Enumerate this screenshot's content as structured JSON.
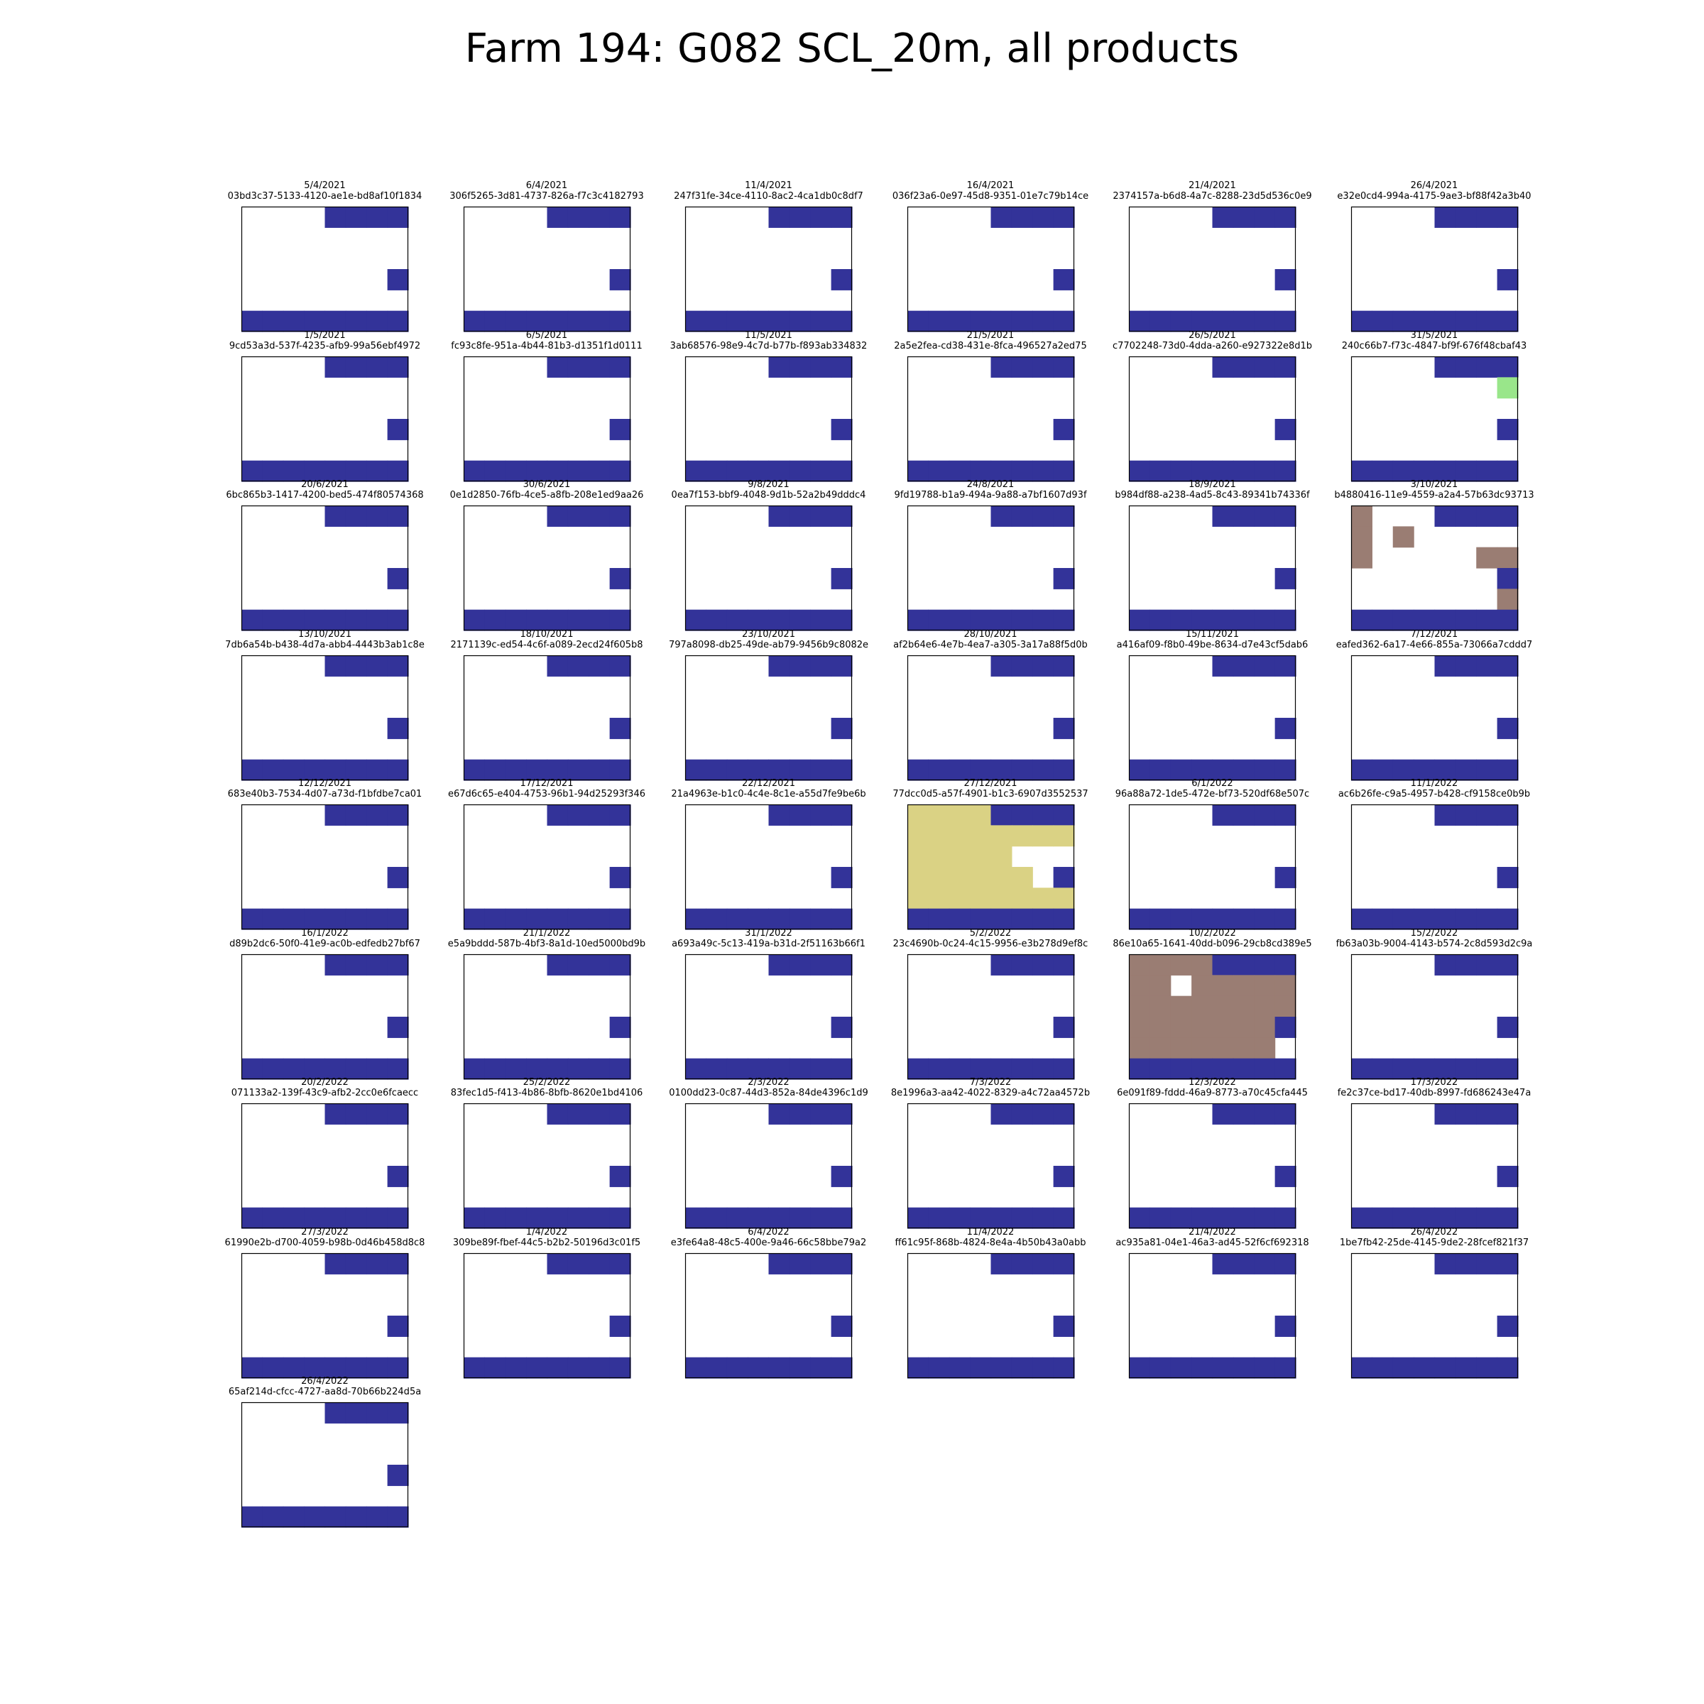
{
  "title": "Farm 194: G082 SCL_20m, all products",
  "colors": {
    "no_data": "#ffffff",
    "cloud_shadow": "#333399",
    "vegetation": "#99e68a",
    "bare_soil": "#9a7d73",
    "water": "#dad284"
  },
  "chart_data": {
    "type": "heatmap",
    "grid_rows": 6,
    "grid_cols": 8,
    "legend": null,
    "base_pattern": [
      [
        0,
        0,
        0,
        0,
        1,
        1,
        1,
        1
      ],
      [
        0,
        0,
        0,
        0,
        0,
        0,
        0,
        0
      ],
      [
        0,
        0,
        0,
        0,
        0,
        0,
        0,
        0
      ],
      [
        0,
        0,
        0,
        0,
        0,
        0,
        0,
        1
      ],
      [
        0,
        0,
        0,
        0,
        0,
        0,
        0,
        0
      ],
      [
        1,
        1,
        1,
        1,
        1,
        1,
        1,
        1
      ]
    ],
    "panels": [
      {
        "date": "5/4/2021",
        "id": "03bd3c37-5133-4120-ae1e-bd8af10f1834",
        "cells": []
      },
      {
        "date": "6/4/2021",
        "id": "306f5265-3d81-4737-826a-f7c3c4182793",
        "cells": []
      },
      {
        "date": "11/4/2021",
        "id": "247f31fe-34ce-4110-8ac2-4ca1db0c8df7",
        "cells": []
      },
      {
        "date": "16/4/2021",
        "id": "036f23a6-0e97-45d8-9351-01e7c79b14ce",
        "cells": []
      },
      {
        "date": "21/4/2021",
        "id": "2374157a-b6d8-4a7c-8288-23d5d536c0e9",
        "cells": []
      },
      {
        "date": "26/4/2021",
        "id": "e32e0cd4-994a-4175-9ae3-bf88f42a3b40",
        "cells": []
      },
      {
        "date": "1/5/2021",
        "id": "9cd53a3d-537f-4235-afb9-99a56ebf4972",
        "cells": []
      },
      {
        "date": "6/5/2021",
        "id": "fc93c8fe-951a-4b44-81b3-d1351f1d0111",
        "cells": []
      },
      {
        "date": "11/5/2021",
        "id": "3ab68576-98e9-4c7d-b77b-f893ab334832",
        "cells": []
      },
      {
        "date": "21/5/2021",
        "id": "2a5e2fea-cd38-431e-8fca-496527a2ed75",
        "cells": []
      },
      {
        "date": "26/5/2021",
        "id": "c7702248-73d0-4dda-a260-e927322e8d1b",
        "cells": []
      },
      {
        "date": "31/5/2021",
        "id": "240c66b7-f73c-4847-bf9f-676f48cbaf43",
        "cells": [
          [
            1,
            7,
            "vegetation"
          ]
        ]
      },
      {
        "date": "20/6/2021",
        "id": "6bc865b3-1417-4200-bed5-474f80574368",
        "cells": []
      },
      {
        "date": "30/6/2021",
        "id": "0e1d2850-76fb-4ce5-a8fb-208e1ed9aa26",
        "cells": []
      },
      {
        "date": "9/8/2021",
        "id": "0ea7f153-bbf9-4048-9d1b-52a2b49dddc4",
        "cells": []
      },
      {
        "date": "24/8/2021",
        "id": "9fd19788-b1a9-494a-9a88-a7bf1607d93f",
        "cells": []
      },
      {
        "date": "18/9/2021",
        "id": "b984df88-a238-4ad5-8c43-89341b74336f",
        "cells": []
      },
      {
        "date": "3/10/2021",
        "id": "b4880416-11e9-4559-a2a4-57b63dc93713",
        "cells": [
          [
            0,
            0,
            "bare_soil"
          ],
          [
            1,
            0,
            "bare_soil"
          ],
          [
            1,
            2,
            "bare_soil"
          ],
          [
            2,
            0,
            "bare_soil"
          ],
          [
            2,
            6,
            "bare_soil"
          ],
          [
            2,
            7,
            "bare_soil"
          ],
          [
            4,
            7,
            "bare_soil"
          ]
        ]
      },
      {
        "date": "13/10/2021",
        "id": "7db6a54b-b438-4d7a-abb4-4443b3ab1c8e",
        "cells": []
      },
      {
        "date": "18/10/2021",
        "id": "2171139c-ed54-4c6f-a089-2ecd24f605b8",
        "cells": []
      },
      {
        "date": "23/10/2021",
        "id": "797a8098-db25-49de-ab79-9456b9c8082e",
        "cells": []
      },
      {
        "date": "28/10/2021",
        "id": "af2b64e6-4e7b-4ea7-a305-3a17a88f5d0b",
        "cells": []
      },
      {
        "date": "15/11/2021",
        "id": "a416af09-f8b0-49be-8634-d7e43cf5dab6",
        "cells": []
      },
      {
        "date": "7/12/2021",
        "id": "eafed362-6a17-4e66-855a-73066a7cddd7",
        "cells": []
      },
      {
        "date": "12/12/2021",
        "id": "683e40b3-7534-4d07-a73d-f1bfdbe7ca01",
        "cells": []
      },
      {
        "date": "17/12/2021",
        "id": "e67d6c65-e404-4753-96b1-94d25293f346",
        "cells": []
      },
      {
        "date": "22/12/2021",
        "id": "21a4963e-b1c0-4c4e-8c1e-a55d7fe9be6b",
        "cells": []
      },
      {
        "date": "27/12/2021",
        "id": "77dcc0d5-a57f-4901-b1c3-6907d3552537",
        "cells": [
          [
            0,
            0,
            "water"
          ],
          [
            0,
            1,
            "water"
          ],
          [
            0,
            2,
            "water"
          ],
          [
            0,
            3,
            "water"
          ],
          [
            1,
            0,
            "water"
          ],
          [
            1,
            1,
            "water"
          ],
          [
            1,
            2,
            "water"
          ],
          [
            1,
            3,
            "water"
          ],
          [
            1,
            4,
            "water"
          ],
          [
            1,
            5,
            "water"
          ],
          [
            1,
            6,
            "water"
          ],
          [
            1,
            7,
            "water"
          ],
          [
            2,
            0,
            "water"
          ],
          [
            2,
            1,
            "water"
          ],
          [
            2,
            2,
            "water"
          ],
          [
            2,
            3,
            "water"
          ],
          [
            2,
            4,
            "water"
          ],
          [
            3,
            0,
            "water"
          ],
          [
            3,
            1,
            "water"
          ],
          [
            3,
            2,
            "water"
          ],
          [
            3,
            3,
            "water"
          ],
          [
            3,
            4,
            "water"
          ],
          [
            3,
            5,
            "water"
          ],
          [
            4,
            0,
            "water"
          ],
          [
            4,
            1,
            "water"
          ],
          [
            4,
            2,
            "water"
          ],
          [
            4,
            3,
            "water"
          ],
          [
            4,
            4,
            "water"
          ],
          [
            4,
            5,
            "water"
          ],
          [
            4,
            6,
            "water"
          ],
          [
            4,
            7,
            "water"
          ]
        ]
      },
      {
        "date": "6/1/2022",
        "id": "96a88a72-1de5-472e-bf73-520df68e507c",
        "cells": []
      },
      {
        "date": "11/1/2022",
        "id": "ac6b26fe-c9a5-4957-b428-cf9158ce0b9b",
        "cells": []
      },
      {
        "date": "16/1/2022",
        "id": "d89b2dc6-50f0-41e9-ac0b-edfedb27bf67",
        "cells": []
      },
      {
        "date": "21/1/2022",
        "id": "e5a9bddd-587b-4bf3-8a1d-10ed5000bd9b",
        "cells": []
      },
      {
        "date": "31/1/2022",
        "id": "a693a49c-5c13-419a-b31d-2f51163b66f1",
        "cells": []
      },
      {
        "date": "5/2/2022",
        "id": "23c4690b-0c24-4c15-9956-e3b278d9ef8c",
        "cells": []
      },
      {
        "date": "10/2/2022",
        "id": "86e10a65-1641-40dd-b096-29cb8cd389e5",
        "cells": [
          [
            0,
            0,
            "bare_soil"
          ],
          [
            0,
            1,
            "bare_soil"
          ],
          [
            0,
            2,
            "bare_soil"
          ],
          [
            0,
            3,
            "bare_soil"
          ],
          [
            1,
            0,
            "bare_soil"
          ],
          [
            1,
            1,
            "bare_soil"
          ],
          [
            1,
            3,
            "bare_soil"
          ],
          [
            1,
            4,
            "bare_soil"
          ],
          [
            1,
            5,
            "bare_soil"
          ],
          [
            1,
            6,
            "bare_soil"
          ],
          [
            1,
            7,
            "bare_soil"
          ],
          [
            2,
            0,
            "bare_soil"
          ],
          [
            2,
            1,
            "bare_soil"
          ],
          [
            2,
            2,
            "bare_soil"
          ],
          [
            2,
            3,
            "bare_soil"
          ],
          [
            2,
            4,
            "bare_soil"
          ],
          [
            2,
            5,
            "bare_soil"
          ],
          [
            2,
            6,
            "bare_soil"
          ],
          [
            2,
            7,
            "bare_soil"
          ],
          [
            3,
            0,
            "bare_soil"
          ],
          [
            3,
            1,
            "bare_soil"
          ],
          [
            3,
            2,
            "bare_soil"
          ],
          [
            3,
            3,
            "bare_soil"
          ],
          [
            3,
            4,
            "bare_soil"
          ],
          [
            3,
            5,
            "bare_soil"
          ],
          [
            3,
            6,
            "bare_soil"
          ],
          [
            4,
            0,
            "bare_soil"
          ],
          [
            4,
            1,
            "bare_soil"
          ],
          [
            4,
            2,
            "bare_soil"
          ],
          [
            4,
            3,
            "bare_soil"
          ],
          [
            4,
            4,
            "bare_soil"
          ],
          [
            4,
            5,
            "bare_soil"
          ],
          [
            4,
            6,
            "bare_soil"
          ]
        ]
      },
      {
        "date": "15/2/2022",
        "id": "fb63a03b-9004-4143-b574-2c8d593d2c9a",
        "cells": []
      },
      {
        "date": "20/2/2022",
        "id": "071133a2-139f-43c9-afb2-2cc0e6fcaecc",
        "cells": []
      },
      {
        "date": "25/2/2022",
        "id": "83fec1d5-f413-4b86-8bfb-8620e1bd4106",
        "cells": []
      },
      {
        "date": "2/3/2022",
        "id": "0100dd23-0c87-44d3-852a-84de4396c1d9",
        "cells": []
      },
      {
        "date": "7/3/2022",
        "id": "8e1996a3-aa42-4022-8329-a4c72aa4572b",
        "cells": []
      },
      {
        "date": "12/3/2022",
        "id": "6e091f89-fddd-46a9-8773-a70c45cfa445",
        "cells": []
      },
      {
        "date": "17/3/2022",
        "id": "fe2c37ce-bd17-40db-8997-fd686243e47a",
        "cells": []
      },
      {
        "date": "27/3/2022",
        "id": "61990e2b-d700-4059-b98b-0d46b458d8c8",
        "cells": []
      },
      {
        "date": "1/4/2022",
        "id": "309be89f-fbef-44c5-b2b2-50196d3c01f5",
        "cells": []
      },
      {
        "date": "6/4/2022",
        "id": "e3fe64a8-48c5-400e-9a46-66c58bbe79a2",
        "cells": []
      },
      {
        "date": "11/4/2022",
        "id": "ff61c95f-868b-4824-8e4a-4b50b43a0abb",
        "cells": []
      },
      {
        "date": "21/4/2022",
        "id": "ac935a81-04e1-46a3-ad45-52f6cf692318",
        "cells": []
      },
      {
        "date": "26/4/2022",
        "id": "1be7fb42-25de-4145-9de2-28fcef821f37",
        "cells": []
      },
      {
        "date": "26/4/2022",
        "id": "65af214d-cfcc-4727-aa8d-70b66b224d5a",
        "cells": []
      }
    ]
  }
}
